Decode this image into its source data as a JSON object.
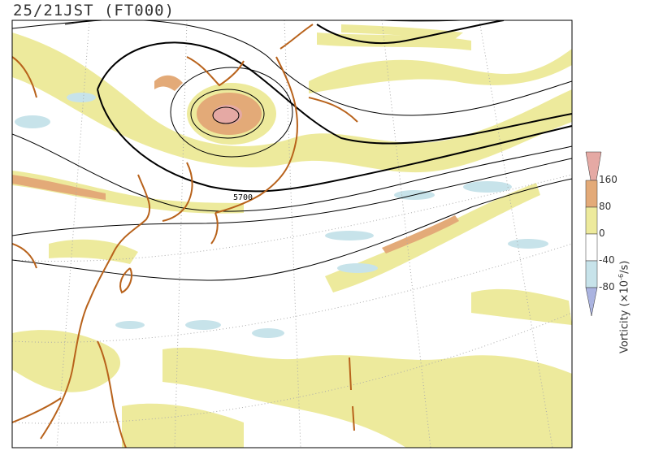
{
  "title": "25/21JST (FT000)",
  "contour_label": "5700",
  "colorbar": {
    "label_prefix": "Vorticity (×10",
    "label_exp": "-6",
    "label_suffix": "/s)",
    "ticks": [
      "160",
      "80",
      "0",
      "-40",
      "-80"
    ],
    "bins": [
      {
        "range": ">160",
        "color": "#e5a9a4"
      },
      {
        "range": "80-160",
        "color": "#e3aa78"
      },
      {
        "range": "0-80",
        "color": "#edea9c"
      },
      {
        "range": "-40-0",
        "color": "#ffffff"
      },
      {
        "range": "-80--40",
        "color": "#c7e3ea"
      },
      {
        "range": "<-80",
        "color": "#aab3e0"
      }
    ]
  },
  "colors": {
    "coast": "#b8621b",
    "contour": "#000000",
    "grid": "#aaaaaa",
    "frame": "#000000"
  }
}
